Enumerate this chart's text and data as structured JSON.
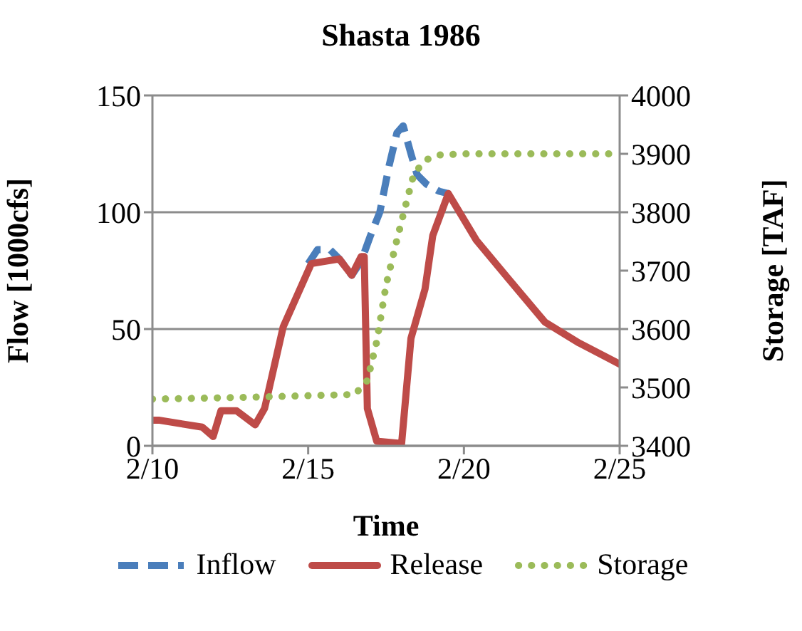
{
  "chart_data": {
    "type": "line",
    "title": "Shasta 1986",
    "xlabel": "Time",
    "ylabel": "Flow [1000cfs]",
    "y2label": "Storage [TAF]",
    "xlim": [
      "1986-02-10",
      "1986-02-25"
    ],
    "xticks": [
      {
        "value": "1986-02-10",
        "label": "2/10"
      },
      {
        "value": "1986-02-15",
        "label": "2/15"
      },
      {
        "value": "1986-02-20",
        "label": "2/20"
      },
      {
        "value": "1986-02-25",
        "label": "2/25"
      }
    ],
    "ylim": [
      0,
      150
    ],
    "yticks": [
      0,
      50,
      100,
      150
    ],
    "y2lim": [
      3400,
      4000
    ],
    "y2ticks": [
      3400,
      3500,
      3600,
      3700,
      3800,
      3900,
      4000
    ],
    "grid": "y",
    "legend": "bottom",
    "marker": "none",
    "series": [
      {
        "name": "Inflow",
        "color": "#4a7ebb",
        "line_style": "dashed",
        "x": [
          "1986-02-15T00:00",
          "1986-02-15T07:12",
          "1986-02-15T16:48",
          "1986-02-16T00:00",
          "1986-02-16T09:36",
          "1986-02-16T16:48",
          "1986-02-17T00:00",
          "1986-02-17T07:12",
          "1986-02-17T14:24",
          "1986-02-17T20:24",
          "1986-02-18T01:12",
          "1986-02-18T07:12",
          "1986-02-18T12:00",
          "1986-02-18T19:12",
          "1986-02-19T04:48",
          "1986-02-19T12:00"
        ],
        "values": [
          78,
          84,
          84,
          80,
          73,
          79,
          90,
          100,
          120,
          134,
          137,
          125,
          116,
          112,
          109,
          108
        ]
      },
      {
        "name": "Release",
        "color": "#be4b48",
        "line_style": "solid",
        "x": [
          "1986-02-10T00:00",
          "1986-02-10T04:48",
          "1986-02-11T14:24",
          "1986-02-11T22:48",
          "1986-02-12T04:48",
          "1986-02-12T16:48",
          "1986-02-13T07:12",
          "1986-02-13T14:24",
          "1986-02-14T04:48",
          "1986-02-15T02:24",
          "1986-02-16T00:00",
          "1986-02-16T09:36",
          "1986-02-16T16:48",
          "1986-02-16T19:12",
          "1986-02-16T21:36",
          "1986-02-17T04:48",
          "1986-02-18T00:00",
          "1986-02-18T07:12",
          "1986-02-18T18:00",
          "1986-02-19T00:00",
          "1986-02-19T12:00",
          "1986-02-20T09:36",
          "1986-02-21T09:36",
          "1986-02-22T14:24",
          "1986-02-23T16:48",
          "1986-02-25T00:00"
        ],
        "values": [
          11,
          11,
          8,
          4,
          15,
          15,
          9,
          16,
          51,
          78,
          80,
          73,
          81,
          81,
          16,
          2,
          1,
          46,
          67,
          90,
          108,
          88,
          72,
          53,
          44,
          35
        ]
      },
      {
        "name": "Storage",
        "color": "#9bbb59",
        "line_style": "dotted",
        "axis": "y2",
        "x": [
          "1986-02-10T00:00",
          "1986-02-13T00:00",
          "1986-02-16T12:00",
          "1986-02-16T21:36",
          "1986-02-17T04:48",
          "1986-02-17T12:00",
          "1986-02-17T19:12",
          "1986-02-18T02:24",
          "1986-02-18T09:36",
          "1986-02-18T19:12",
          "1986-02-19T04:48",
          "1986-02-20T00:00",
          "1986-02-25T00:00"
        ],
        "values": [
          3480,
          3483,
          3488,
          3512,
          3578,
          3675,
          3742,
          3806,
          3867,
          3890,
          3898,
          3900,
          3900
        ]
      }
    ]
  }
}
